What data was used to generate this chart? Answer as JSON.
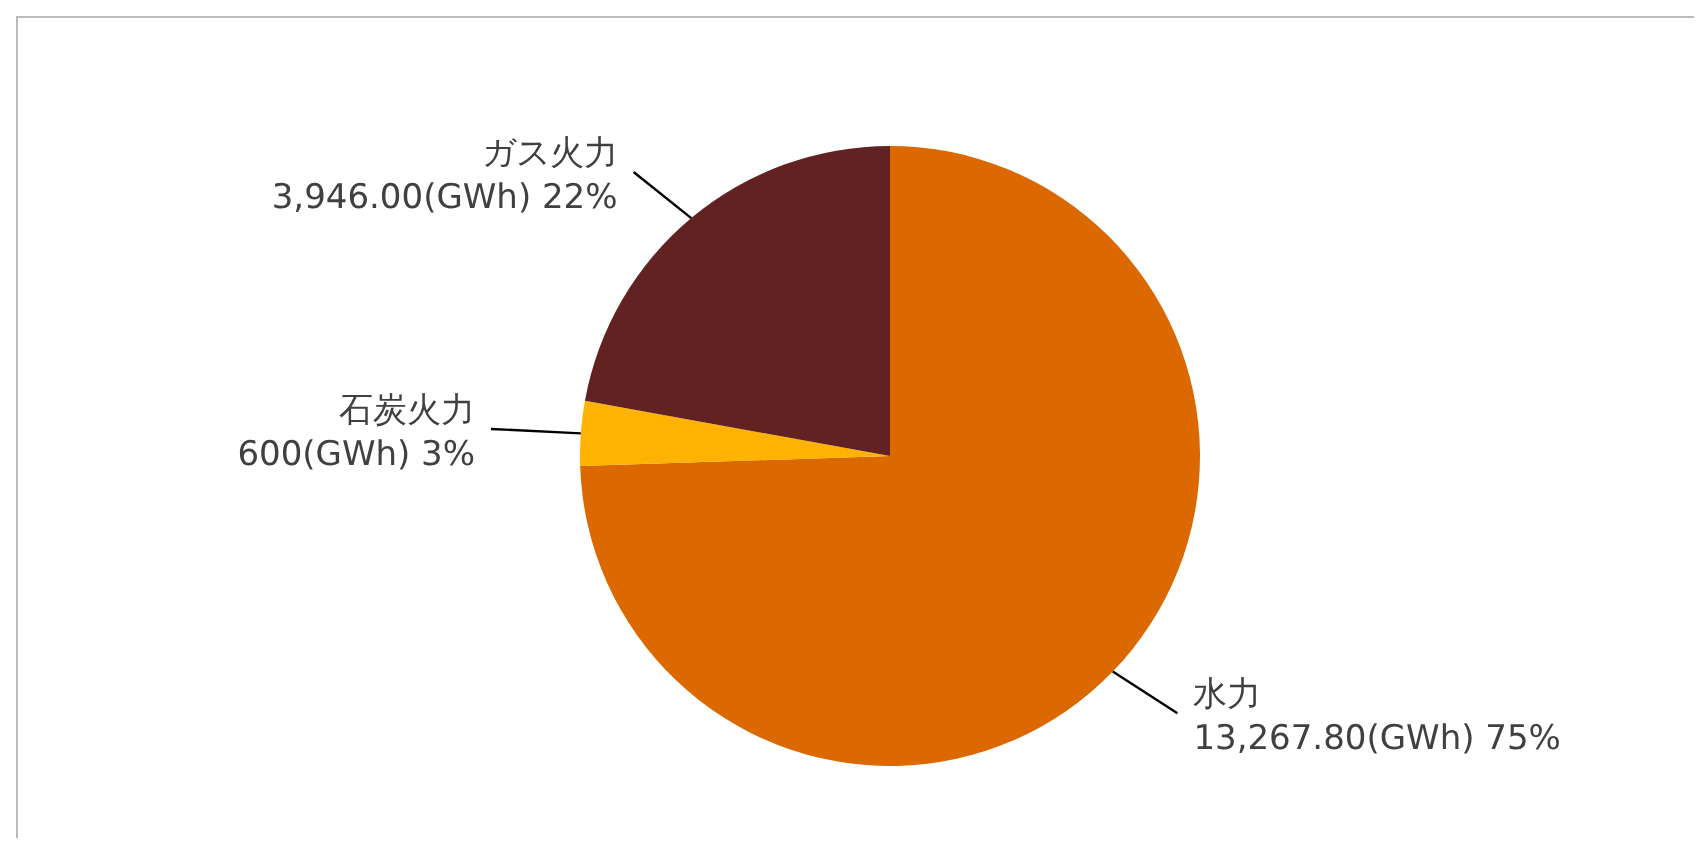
{
  "chart_data": {
    "type": "pie",
    "categories": [
      "水力",
      "石炭火力",
      "ガス火力"
    ],
    "values": [
      13267.8,
      600,
      3946.0
    ],
    "colors": [
      "#dc6900",
      "#ffb300",
      "#622222"
    ],
    "value_labels": [
      "13,267.80(GWh)  75%",
      "600(GWh) 3%",
      "3,946.00(GWh) 22%"
    ],
    "legend": false
  }
}
